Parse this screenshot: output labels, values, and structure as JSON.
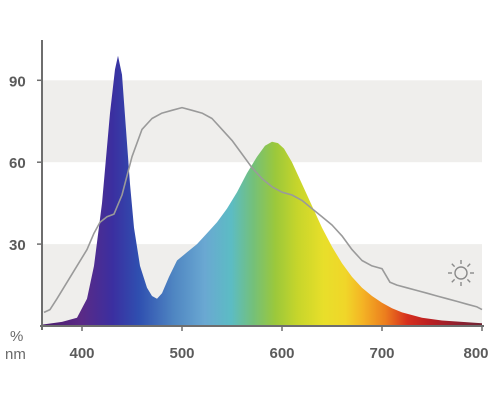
{
  "chart_data": {
    "type": "area",
    "title": "",
    "xlabel": "nm",
    "ylabel": "%",
    "xlim": [
      360,
      800
    ],
    "ylim": [
      0,
      100
    ],
    "xticks": [
      400,
      500,
      600,
      700,
      800
    ],
    "yticks": [
      30,
      60,
      90
    ],
    "grid": "alternating horizontal bands",
    "legend": "none",
    "band_color": "#efeeec",
    "axis_color": "#6e6e6e",
    "reference_line_color": "#9a9a9a",
    "icon": "sun-icon",
    "series": [
      {
        "style": "spectrum-filled-area",
        "points": [
          [
            360,
            0.5
          ],
          [
            380,
            1.5
          ],
          [
            395,
            3
          ],
          [
            405,
            10
          ],
          [
            412,
            22
          ],
          [
            420,
            45
          ],
          [
            428,
            78
          ],
          [
            433,
            94
          ],
          [
            436,
            99
          ],
          [
            440,
            92
          ],
          [
            444,
            72
          ],
          [
            448,
            52
          ],
          [
            452,
            36
          ],
          [
            458,
            22
          ],
          [
            465,
            14
          ],
          [
            470,
            11
          ],
          [
            475,
            10
          ],
          [
            480,
            12
          ],
          [
            487,
            18
          ],
          [
            495,
            24
          ],
          [
            505,
            27
          ],
          [
            515,
            30
          ],
          [
            525,
            34
          ],
          [
            535,
            38
          ],
          [
            545,
            43
          ],
          [
            555,
            49
          ],
          [
            565,
            56
          ],
          [
            575,
            62
          ],
          [
            583,
            66
          ],
          [
            590,
            67.5
          ],
          [
            596,
            67
          ],
          [
            602,
            65
          ],
          [
            610,
            60
          ],
          [
            620,
            52
          ],
          [
            630,
            44
          ],
          [
            640,
            36
          ],
          [
            650,
            29
          ],
          [
            660,
            23
          ],
          [
            670,
            18
          ],
          [
            680,
            14
          ],
          [
            690,
            11
          ],
          [
            700,
            8.5
          ],
          [
            710,
            6.5
          ],
          [
            720,
            5
          ],
          [
            740,
            3
          ],
          [
            760,
            2
          ],
          [
            780,
            1.5
          ],
          [
            800,
            1
          ]
        ]
      },
      {
        "style": "gray-line",
        "points": [
          [
            362,
            5
          ],
          [
            368,
            6
          ],
          [
            375,
            10
          ],
          [
            385,
            16
          ],
          [
            395,
            22
          ],
          [
            405,
            28
          ],
          [
            412,
            34
          ],
          [
            418,
            38
          ],
          [
            425,
            40
          ],
          [
            432,
            41
          ],
          [
            440,
            48
          ],
          [
            450,
            62
          ],
          [
            460,
            72
          ],
          [
            470,
            76
          ],
          [
            480,
            78
          ],
          [
            490,
            79
          ],
          [
            500,
            80
          ],
          [
            510,
            79
          ],
          [
            520,
            78
          ],
          [
            530,
            76
          ],
          [
            540,
            72
          ],
          [
            550,
            68
          ],
          [
            560,
            63
          ],
          [
            570,
            58
          ],
          [
            580,
            54
          ],
          [
            590,
            51
          ],
          [
            600,
            49
          ],
          [
            610,
            48
          ],
          [
            620,
            46
          ],
          [
            630,
            43
          ],
          [
            640,
            40
          ],
          [
            650,
            37
          ],
          [
            660,
            33
          ],
          [
            670,
            28
          ],
          [
            680,
            24
          ],
          [
            690,
            22
          ],
          [
            700,
            21
          ],
          [
            708,
            16
          ],
          [
            715,
            15
          ],
          [
            725,
            14
          ],
          [
            735,
            13
          ],
          [
            745,
            12
          ],
          [
            755,
            11
          ],
          [
            765,
            10
          ],
          [
            775,
            9
          ],
          [
            785,
            8
          ],
          [
            795,
            7
          ],
          [
            800,
            6
          ]
        ]
      }
    ]
  }
}
